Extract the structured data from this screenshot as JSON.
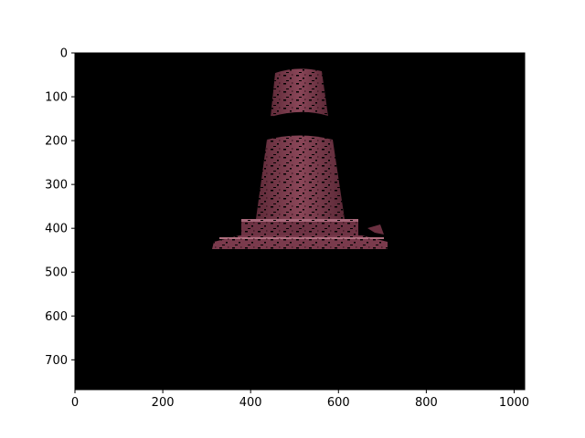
{
  "figure": {
    "background": "#ffffff",
    "image_background": "#000000",
    "object_color": "#7d3a4c",
    "object_highlight": "#a8687a",
    "object_shadow": "#4a1e2a",
    "object": "traffic-cone-depth-segmentation"
  },
  "axes": {
    "x": {
      "range": [
        0,
        1024
      ],
      "ticks": [
        0,
        200,
        400,
        600,
        800,
        1000
      ],
      "tick_labels": [
        "0",
        "200",
        "400",
        "600",
        "800",
        "1000"
      ]
    },
    "y": {
      "range": [
        768,
        0
      ],
      "ticks": [
        0,
        100,
        200,
        300,
        400,
        500,
        600,
        700
      ],
      "tick_labels": [
        "0",
        "100",
        "200",
        "300",
        "400",
        "500",
        "600",
        "700"
      ],
      "inverted": true
    }
  }
}
